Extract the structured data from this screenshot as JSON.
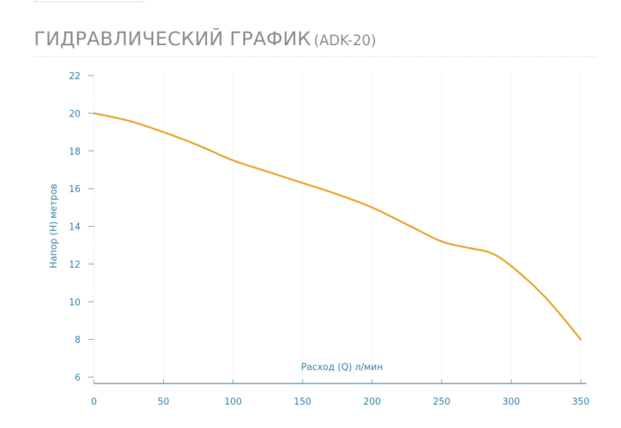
{
  "header": {
    "title_main": "ГИДРАВЛИЧЕСКИЙ ГРАФИК",
    "title_sub": "(ADK-20)"
  },
  "chart_data": {
    "type": "line",
    "title": "ГИДРАВЛИЧЕСКИЙ ГРАФИК (ADK-20)",
    "xlabel": "Расход (Q) л/мин",
    "ylabel": "Напор (H) метров",
    "xlim": [
      0,
      350
    ],
    "ylim": [
      6,
      22
    ],
    "x_ticks": [
      0,
      50,
      100,
      150,
      200,
      250,
      300,
      350
    ],
    "y_ticks": [
      6,
      8,
      10,
      12,
      14,
      16,
      18,
      20,
      22
    ],
    "grid": "vertical dotted",
    "series": [
      {
        "color": "#eaa128",
        "x": [
          0,
          25,
          50,
          75,
          100,
          125,
          150,
          175,
          200,
          225,
          250,
          270,
          285,
          300,
          325,
          350
        ],
        "y": [
          20.0,
          19.6,
          19.0,
          18.3,
          17.5,
          16.9,
          16.3,
          15.7,
          15.0,
          14.1,
          13.2,
          12.85,
          12.6,
          11.9,
          10.2,
          8.0
        ]
      }
    ]
  }
}
